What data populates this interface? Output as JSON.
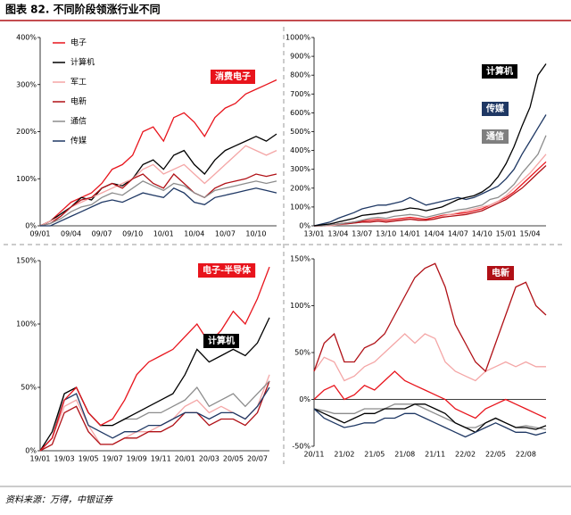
{
  "header": {
    "title": "图表 82. 不同阶段领涨行业不同"
  },
  "chart_data": [
    {
      "type": "line",
      "categories": [
        "09/01",
        null,
        null,
        "09/04",
        null,
        null,
        "09/07",
        null,
        null,
        "09/10",
        null,
        null,
        "10/01",
        null,
        null,
        "10/04",
        null,
        null,
        "10/07",
        null,
        null,
        "10/10",
        null,
        null
      ],
      "ylim": [
        0,
        400
      ],
      "yticks": [
        {
          "value": 0,
          "label": "0%"
        },
        {
          "value": 100,
          "label": "100%"
        },
        {
          "value": 200,
          "label": "200%"
        },
        {
          "value": 300,
          "label": "300%"
        },
        {
          "value": 400,
          "label": "400%"
        }
      ],
      "legend": "upper left",
      "annotations": [
        {
          "text": "消费电子",
          "color": "#e8141c"
        }
      ],
      "series": [
        {
          "name": "电子",
          "color": "#e8141c",
          "values": [
            0,
            10,
            30,
            50,
            60,
            70,
            90,
            120,
            130,
            150,
            200,
            210,
            180,
            230,
            240,
            220,
            190,
            230,
            250,
            260,
            280,
            290,
            300,
            310
          ]
        },
        {
          "name": "计算机",
          "color": "#000000",
          "values": [
            0,
            10,
            25,
            40,
            60,
            55,
            80,
            90,
            85,
            100,
            130,
            140,
            120,
            150,
            160,
            130,
            110,
            140,
            160,
            170,
            180,
            190,
            180,
            195
          ]
        },
        {
          "name": "军工",
          "color": "#f4a6a6",
          "values": [
            0,
            10,
            20,
            40,
            50,
            60,
            70,
            80,
            90,
            100,
            120,
            130,
            110,
            120,
            130,
            110,
            90,
            110,
            130,
            150,
            170,
            160,
            150,
            160
          ]
        },
        {
          "name": "电新",
          "color": "#b01016",
          "values": [
            0,
            5,
            20,
            40,
            55,
            60,
            80,
            90,
            80,
            100,
            110,
            90,
            80,
            110,
            90,
            70,
            60,
            80,
            90,
            95,
            100,
            110,
            105,
            110
          ]
        },
        {
          "name": "通信",
          "color": "#8c8c8c",
          "values": [
            0,
            5,
            15,
            30,
            40,
            45,
            60,
            70,
            65,
            80,
            95,
            85,
            75,
            90,
            85,
            70,
            60,
            75,
            80,
            85,
            90,
            95,
            90,
            95
          ]
        },
        {
          "name": "传媒",
          "color": "#1f3864",
          "values": [
            0,
            0,
            10,
            20,
            30,
            40,
            50,
            55,
            50,
            60,
            70,
            65,
            60,
            80,
            70,
            50,
            45,
            60,
            65,
            70,
            75,
            80,
            75,
            70
          ]
        }
      ]
    },
    {
      "type": "line",
      "categories": [
        "13/01",
        null,
        null,
        "13/04",
        null,
        null,
        "13/07",
        null,
        null,
        "13/10",
        null,
        null,
        "14/01",
        null,
        null,
        "14/04",
        null,
        null,
        "14/07",
        null,
        null,
        "14/10",
        null,
        null,
        "15/01",
        null,
        null,
        "15/04",
        null,
        null
      ],
      "ylim": [
        0,
        1000
      ],
      "yticks": [
        {
          "value": 0,
          "label": "0%"
        },
        {
          "value": 100,
          "label": "100%"
        },
        {
          "value": 200,
          "label": "200%"
        },
        {
          "value": 300,
          "label": "300%"
        },
        {
          "value": 400,
          "label": "400%"
        },
        {
          "value": 500,
          "label": "500%"
        },
        {
          "value": 600,
          "label": "600%"
        },
        {
          "value": 700,
          "label": "700%"
        },
        {
          "value": 800,
          "label": "800%"
        },
        {
          "value": 900,
          "label": "900%"
        },
        {
          "value": 1000,
          "label": "1000%"
        }
      ],
      "annotations": [
        {
          "text": "计算机",
          "color": "#000000"
        },
        {
          "text": "传媒",
          "color": "#1f3864"
        },
        {
          "text": "通信",
          "color": "#7f7f7f"
        }
      ],
      "series": [
        {
          "color": "#e8141c",
          "values": [
            0,
            0,
            5,
            10,
            15,
            20,
            25,
            30,
            35,
            30,
            35,
            40,
            45,
            40,
            35,
            45,
            55,
            60,
            65,
            70,
            80,
            90,
            110,
            130,
            150,
            180,
            220,
            260,
            300,
            340
          ]
        },
        {
          "color": "#f4a6a6",
          "values": [
            0,
            0,
            0,
            5,
            10,
            15,
            20,
            25,
            30,
            25,
            30,
            35,
            40,
            35,
            30,
            40,
            50,
            60,
            70,
            80,
            90,
            100,
            110,
            130,
            160,
            200,
            240,
            280,
            330,
            380
          ]
        },
        {
          "color": "#b01016",
          "values": [
            0,
            0,
            5,
            10,
            10,
            15,
            20,
            20,
            25,
            20,
            25,
            30,
            35,
            30,
            30,
            35,
            45,
            50,
            55,
            60,
            70,
            80,
            100,
            120,
            140,
            170,
            200,
            240,
            280,
            320
          ]
        },
        {
          "color": "#8c8c8c",
          "values": [
            0,
            0,
            5,
            10,
            15,
            20,
            30,
            40,
            45,
            40,
            50,
            55,
            60,
            55,
            45,
            55,
            65,
            75,
            85,
            90,
            100,
            110,
            140,
            150,
            180,
            220,
            280,
            330,
            380,
            480
          ]
        },
        {
          "color": "#1f3864",
          "values": [
            0,
            10,
            20,
            40,
            55,
            70,
            90,
            100,
            110,
            110,
            120,
            130,
            150,
            130,
            110,
            120,
            130,
            140,
            150,
            140,
            150,
            170,
            190,
            210,
            250,
            300,
            380,
            450,
            520,
            590
          ]
        },
        {
          "color": "#000000",
          "values": [
            0,
            5,
            10,
            20,
            30,
            40,
            55,
            60,
            65,
            70,
            80,
            85,
            95,
            90,
            80,
            90,
            100,
            120,
            140,
            150,
            160,
            180,
            210,
            260,
            330,
            420,
            530,
            630,
            800,
            860
          ]
        }
      ]
    },
    {
      "type": "line",
      "categories": [
        "19/01",
        null,
        "19/03",
        null,
        "19/05",
        null,
        "19/07",
        null,
        "19/09",
        null,
        "19/11",
        null,
        "20/01",
        null,
        "20/03",
        null,
        "20/05",
        null,
        "20/07",
        null
      ],
      "ylim": [
        0,
        150
      ],
      "yticks": [
        {
          "value": 0,
          "label": "0%"
        },
        {
          "value": 50,
          "label": "50%"
        },
        {
          "value": 100,
          "label": "100%"
        },
        {
          "value": 150,
          "label": "150%"
        }
      ],
      "annotations": [
        {
          "text": "电子-半导体",
          "color": "#e8141c"
        },
        {
          "text": "计算机",
          "color": "#000000"
        }
      ],
      "series": [
        {
          "color": "#f4a6a6",
          "values": [
            0,
            10,
            35,
            40,
            20,
            5,
            5,
            10,
            15,
            15,
            20,
            25,
            35,
            40,
            30,
            35,
            30,
            25,
            35,
            60
          ]
        },
        {
          "color": "#b01016",
          "values": [
            0,
            5,
            30,
            35,
            15,
            5,
            5,
            10,
            10,
            15,
            15,
            20,
            30,
            30,
            20,
            25,
            25,
            20,
            30,
            55
          ]
        },
        {
          "color": "#8c8c8c",
          "values": [
            0,
            10,
            45,
            50,
            30,
            20,
            20,
            25,
            25,
            30,
            30,
            35,
            40,
            50,
            35,
            40,
            45,
            35,
            45,
            55
          ]
        },
        {
          "color": "#1f3864",
          "values": [
            0,
            10,
            40,
            45,
            20,
            15,
            10,
            15,
            15,
            20,
            20,
            25,
            30,
            30,
            25,
            30,
            30,
            25,
            35,
            50
          ]
        },
        {
          "color": "#000000",
          "values": [
            0,
            15,
            45,
            50,
            30,
            20,
            20,
            25,
            30,
            35,
            40,
            45,
            60,
            80,
            70,
            75,
            80,
            75,
            85,
            105
          ]
        },
        {
          "color": "#e8141c",
          "values": [
            0,
            10,
            40,
            50,
            30,
            20,
            25,
            40,
            60,
            70,
            75,
            80,
            90,
            100,
            85,
            95,
            110,
            100,
            120,
            145
          ]
        }
      ]
    },
    {
      "type": "line",
      "categories": [
        "20/11",
        null,
        null,
        "21/02",
        null,
        null,
        "21/05",
        null,
        null,
        "21/08",
        null,
        null,
        "21/11",
        null,
        null,
        "22/02",
        null,
        null,
        "22/05",
        null,
        null,
        "22/08",
        null,
        null
      ],
      "ylim": [
        -50,
        150
      ],
      "yticks": [
        {
          "value": -50,
          "label": "-50%"
        },
        {
          "value": 0,
          "label": "0%"
        },
        {
          "value": 50,
          "label": "50%"
        },
        {
          "value": 100,
          "label": "100%"
        },
        {
          "value": 150,
          "label": "150%"
        }
      ],
      "annotations": [
        {
          "text": "电新",
          "color": "#b01016"
        }
      ],
      "series": [
        {
          "color": "#f4a6a6",
          "values": [
            30,
            45,
            40,
            20,
            25,
            35,
            40,
            50,
            60,
            70,
            60,
            70,
            65,
            40,
            30,
            25,
            20,
            30,
            35,
            40,
            35,
            40,
            35,
            35
          ]
        },
        {
          "color": "#e8141c",
          "values": [
            0,
            10,
            15,
            0,
            5,
            15,
            10,
            20,
            30,
            20,
            15,
            10,
            5,
            0,
            -10,
            -15,
            -20,
            -10,
            -5,
            0,
            -5,
            -10,
            -15,
            -20
          ]
        },
        {
          "color": "#8c8c8c",
          "values": [
            -10,
            -12,
            -15,
            -15,
            -15,
            -10,
            -10,
            -10,
            -5,
            -5,
            -5,
            -10,
            -15,
            -20,
            -25,
            -30,
            -30,
            -25,
            -20,
            -25,
            -30,
            -28,
            -30,
            -32
          ]
        },
        {
          "color": "#000000",
          "values": [
            -10,
            -15,
            -20,
            -25,
            -20,
            -15,
            -15,
            -10,
            -10,
            -10,
            -5,
            -5,
            -10,
            -15,
            -25,
            -30,
            -35,
            -25,
            -20,
            -25,
            -30,
            -30,
            -32,
            -28
          ]
        },
        {
          "color": "#1f3864",
          "values": [
            -10,
            -20,
            -25,
            -30,
            -28,
            -25,
            -25,
            -20,
            -20,
            -15,
            -15,
            -20,
            -25,
            -30,
            -35,
            -40,
            -35,
            -30,
            -25,
            -30,
            -35,
            -35,
            -38,
            -35
          ]
        },
        {
          "color": "#b01016",
          "values": [
            30,
            60,
            70,
            40,
            40,
            55,
            60,
            70,
            90,
            110,
            130,
            140,
            145,
            120,
            80,
            60,
            40,
            30,
            60,
            90,
            120,
            125,
            100,
            90
          ]
        }
      ]
    }
  ],
  "footer": {
    "source": "资料来源：万得，中银证券"
  }
}
